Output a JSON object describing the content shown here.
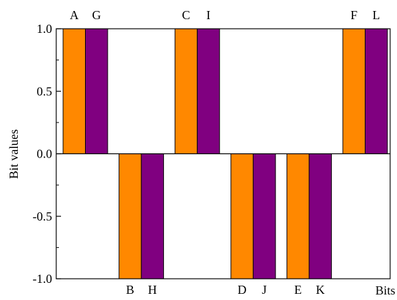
{
  "chart_data": {
    "type": "bar",
    "xlabel": "Bits",
    "ylabel": "Bit values",
    "ylim": [
      -1.0,
      1.0
    ],
    "yticks": [
      {
        "value": 1.0,
        "label": "1.0"
      },
      {
        "value": 0.5,
        "label": "0.5"
      },
      {
        "value": 0.0,
        "label": "0.0"
      },
      {
        "value": -0.5,
        "label": "-0.5"
      },
      {
        "value": -1.0,
        "label": "-1.0"
      }
    ],
    "groups": [
      {
        "bars": [
          {
            "label": "A",
            "value": 1,
            "color": "#FF8800"
          },
          {
            "label": "G",
            "value": 1,
            "color": "#800080"
          }
        ]
      },
      {
        "bars": [
          {
            "label": "B",
            "value": -1,
            "color": "#FF8800"
          },
          {
            "label": "H",
            "value": -1,
            "color": "#800080"
          }
        ]
      },
      {
        "bars": [
          {
            "label": "C",
            "value": 1,
            "color": "#FF8800"
          },
          {
            "label": "I",
            "value": 1,
            "color": "#800080"
          }
        ]
      },
      {
        "bars": [
          {
            "label": "D",
            "value": -1,
            "color": "#FF8800"
          },
          {
            "label": "J",
            "value": -1,
            "color": "#800080"
          }
        ]
      },
      {
        "bars": [
          {
            "label": "E",
            "value": -1,
            "color": "#FF8800"
          },
          {
            "label": "K",
            "value": -1,
            "color": "#800080"
          }
        ]
      },
      {
        "bars": [
          {
            "label": "F",
            "value": 1,
            "color": "#FF8800"
          },
          {
            "label": "L",
            "value": 1,
            "color": "#800080"
          }
        ]
      }
    ],
    "grid": false,
    "legend": "none"
  }
}
